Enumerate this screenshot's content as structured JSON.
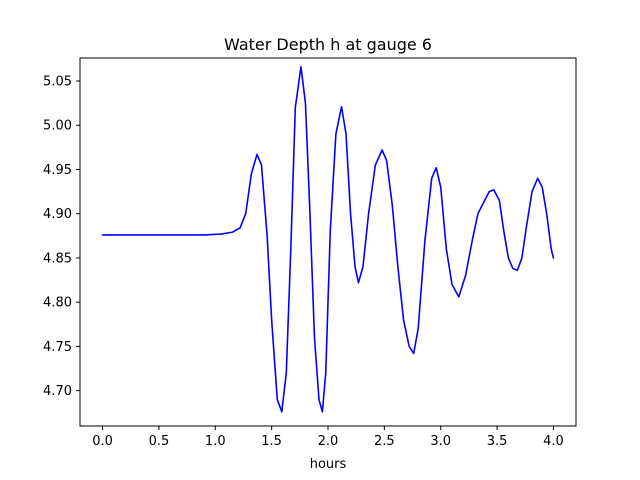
{
  "chart_data": {
    "type": "line",
    "title": "Water Depth h at gauge 6",
    "xlabel": "hours",
    "ylabel": "",
    "xlim": [
      -0.2,
      4.2
    ],
    "ylim": [
      4.66,
      5.076
    ],
    "x_ticks": [
      0.0,
      0.5,
      1.0,
      1.5,
      2.0,
      2.5,
      3.0,
      3.5,
      4.0
    ],
    "x_tick_labels": [
      "0.0",
      "0.5",
      "1.0",
      "1.5",
      "2.0",
      "2.5",
      "3.0",
      "3.5",
      "4.0"
    ],
    "y_ticks": [
      4.7,
      4.75,
      4.8,
      4.85,
      4.9,
      4.95,
      5.0,
      5.05
    ],
    "y_tick_labels": [
      "4.70",
      "4.75",
      "4.80",
      "4.85",
      "4.90",
      "4.95",
      "5.00",
      "5.05"
    ],
    "grid": false,
    "series": [
      {
        "color": "#0000ff",
        "points": [
          [
            0.0,
            4.876
          ],
          [
            0.5,
            4.876
          ],
          [
            0.9,
            4.876
          ],
          [
            1.05,
            4.877
          ],
          [
            1.15,
            4.879
          ],
          [
            1.22,
            4.884
          ],
          [
            1.27,
            4.9
          ],
          [
            1.32,
            4.945
          ],
          [
            1.37,
            4.967
          ],
          [
            1.41,
            4.955
          ],
          [
            1.46,
            4.875
          ],
          [
            1.5,
            4.78
          ],
          [
            1.55,
            4.69
          ],
          [
            1.59,
            4.676
          ],
          [
            1.63,
            4.72
          ],
          [
            1.67,
            4.86
          ],
          [
            1.71,
            5.02
          ],
          [
            1.76,
            5.066
          ],
          [
            1.8,
            5.025
          ],
          [
            1.84,
            4.9
          ],
          [
            1.88,
            4.76
          ],
          [
            1.92,
            4.69
          ],
          [
            1.95,
            4.676
          ],
          [
            1.98,
            4.72
          ],
          [
            2.02,
            4.88
          ],
          [
            2.07,
            4.99
          ],
          [
            2.12,
            5.021
          ],
          [
            2.16,
            4.99
          ],
          [
            2.2,
            4.9
          ],
          [
            2.24,
            4.84
          ],
          [
            2.27,
            4.822
          ],
          [
            2.31,
            4.84
          ],
          [
            2.36,
            4.9
          ],
          [
            2.42,
            4.955
          ],
          [
            2.48,
            4.972
          ],
          [
            2.52,
            4.96
          ],
          [
            2.57,
            4.91
          ],
          [
            2.62,
            4.84
          ],
          [
            2.67,
            4.78
          ],
          [
            2.72,
            4.75
          ],
          [
            2.76,
            4.742
          ],
          [
            2.8,
            4.77
          ],
          [
            2.86,
            4.87
          ],
          [
            2.92,
            4.94
          ],
          [
            2.96,
            4.952
          ],
          [
            3.0,
            4.93
          ],
          [
            3.05,
            4.86
          ],
          [
            3.1,
            4.82
          ],
          [
            3.16,
            4.806
          ],
          [
            3.22,
            4.83
          ],
          [
            3.28,
            4.87
          ],
          [
            3.33,
            4.9
          ],
          [
            3.39,
            4.915
          ],
          [
            3.43,
            4.925
          ],
          [
            3.47,
            4.927
          ],
          [
            3.52,
            4.915
          ],
          [
            3.56,
            4.88
          ],
          [
            3.6,
            4.85
          ],
          [
            3.64,
            4.838
          ],
          [
            3.68,
            4.836
          ],
          [
            3.72,
            4.85
          ],
          [
            3.76,
            4.885
          ],
          [
            3.81,
            4.925
          ],
          [
            3.86,
            4.94
          ],
          [
            3.9,
            4.93
          ],
          [
            3.94,
            4.9
          ],
          [
            3.98,
            4.86
          ],
          [
            4.0,
            4.85
          ]
        ]
      }
    ]
  }
}
